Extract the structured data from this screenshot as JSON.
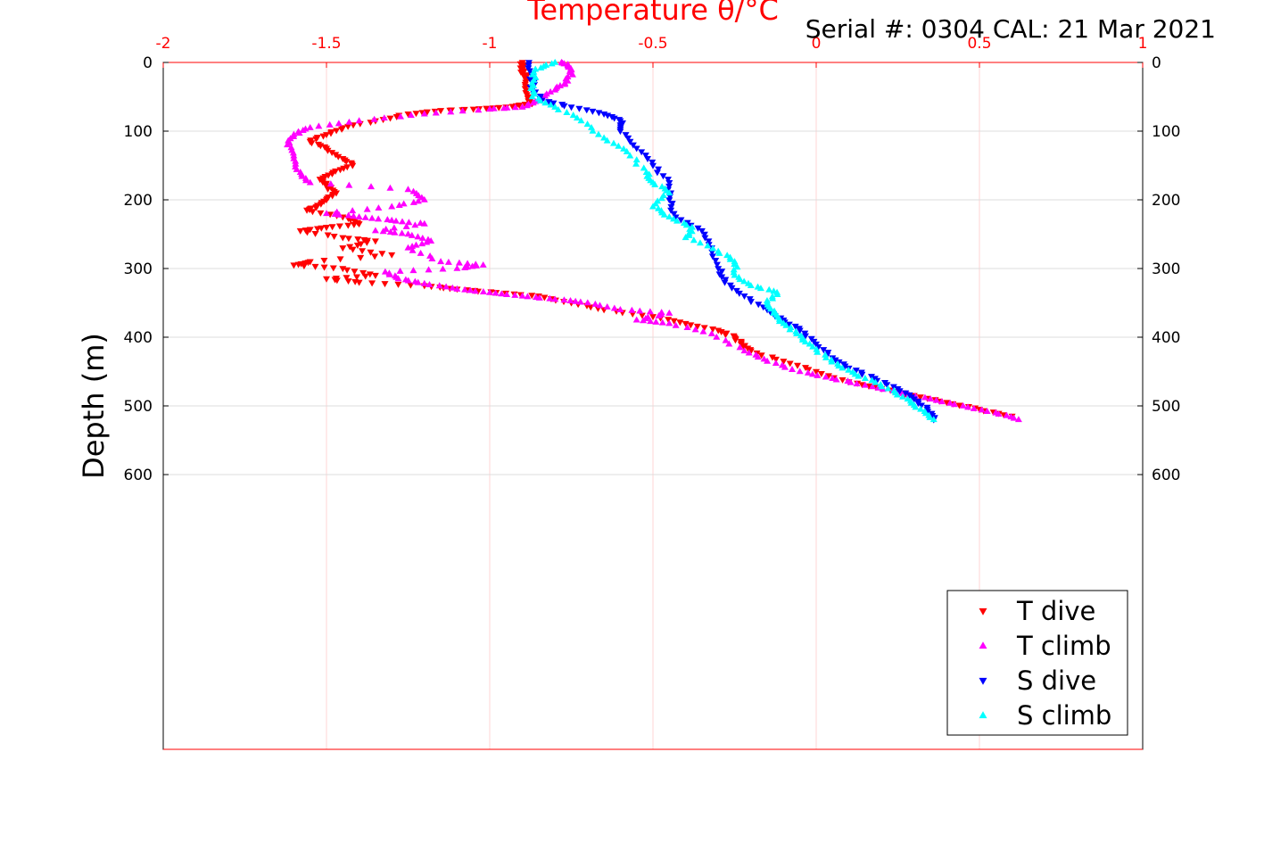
{
  "chart_data": {
    "type": "scatter",
    "title": "",
    "xlabel": "Temperature θ/°C",
    "ylabel": "Depth (m)",
    "annotation": "Serial #: 0304  CAL: 21 Mar 2021",
    "xlim": [
      -2,
      1
    ],
    "ylim": [
      0,
      1000
    ],
    "y_reversed": true,
    "x_axis_position": "top",
    "x_ticks": [
      -2,
      -1.5,
      -1,
      -0.5,
      0,
      0.5,
      1
    ],
    "x_tick_labels": [
      "-2",
      "-1.5",
      "-1",
      "-0.5",
      "0",
      "0.5",
      "1"
    ],
    "y_ticks": [
      0,
      100,
      200,
      300,
      400,
      500,
      600
    ],
    "y_tick_labels": [
      "0",
      "100",
      "200",
      "300",
      "400",
      "500",
      "600"
    ],
    "grid": true,
    "legend_position": "bottom-right",
    "series": [
      {
        "name": "T dive",
        "color": "#ff0000",
        "marker": "triangle-down",
        "points": [
          [
            -0.9,
            0
          ],
          [
            -0.9,
            10
          ],
          [
            -0.89,
            20
          ],
          [
            -0.89,
            35
          ],
          [
            -0.88,
            50
          ],
          [
            -0.87,
            60
          ],
          [
            -0.95,
            65
          ],
          [
            -1.05,
            68
          ],
          [
            -1.15,
            70
          ],
          [
            -1.25,
            75
          ],
          [
            -1.35,
            85
          ],
          [
            -1.45,
            95
          ],
          [
            -1.5,
            105
          ],
          [
            -1.55,
            115
          ],
          [
            -1.5,
            125
          ],
          [
            -1.45,
            140
          ],
          [
            -1.42,
            150
          ],
          [
            -1.48,
            160
          ],
          [
            -1.52,
            170
          ],
          [
            -1.5,
            180
          ],
          [
            -1.47,
            190
          ],
          [
            -1.5,
            200
          ],
          [
            -1.53,
            210
          ],
          [
            -1.56,
            215
          ],
          [
            -1.45,
            225
          ],
          [
            -1.4,
            235
          ],
          [
            -1.5,
            240
          ],
          [
            -1.58,
            245
          ],
          [
            -1.45,
            255
          ],
          [
            -1.35,
            260
          ],
          [
            -1.45,
            270
          ],
          [
            -1.3,
            280
          ],
          [
            -1.55,
            290
          ],
          [
            -1.6,
            295
          ],
          [
            -1.45,
            300
          ],
          [
            -1.35,
            310
          ],
          [
            -1.5,
            315
          ],
          [
            -1.4,
            320
          ],
          [
            -1.2,
            325
          ],
          [
            -1.1,
            330
          ],
          [
            -0.98,
            335
          ],
          [
            -0.85,
            340
          ],
          [
            -0.75,
            350
          ],
          [
            -0.65,
            360
          ],
          [
            -0.5,
            370
          ],
          [
            -0.4,
            380
          ],
          [
            -0.3,
            390
          ],
          [
            -0.25,
            400
          ],
          [
            -0.23,
            410
          ],
          [
            -0.2,
            420
          ],
          [
            -0.1,
            435
          ],
          [
            0.0,
            450
          ],
          [
            0.1,
            465
          ],
          [
            0.2,
            475
          ],
          [
            0.3,
            485
          ],
          [
            0.4,
            495
          ],
          [
            0.5,
            505
          ],
          [
            0.6,
            515
          ]
        ]
      },
      {
        "name": "T climb",
        "color": "#ff00ff",
        "marker": "triangle-up",
        "points": [
          [
            0.62,
            520
          ],
          [
            0.55,
            510
          ],
          [
            0.45,
            500
          ],
          [
            0.35,
            490
          ],
          [
            0.25,
            480
          ],
          [
            0.15,
            470
          ],
          [
            0.05,
            460
          ],
          [
            -0.05,
            450
          ],
          [
            -0.15,
            435
          ],
          [
            -0.22,
            420
          ],
          [
            -0.32,
            395
          ],
          [
            -0.45,
            380
          ],
          [
            -0.55,
            375
          ],
          [
            -0.45,
            365
          ],
          [
            -0.6,
            360
          ],
          [
            -0.7,
            350
          ],
          [
            -0.8,
            345
          ],
          [
            -0.9,
            340
          ],
          [
            -1.0,
            335
          ],
          [
            -1.1,
            330
          ],
          [
            -1.2,
            322
          ],
          [
            -1.28,
            315
          ],
          [
            -1.32,
            305
          ],
          [
            -1.1,
            300
          ],
          [
            -1.02,
            295
          ],
          [
            -1.15,
            290
          ],
          [
            -1.25,
            270
          ],
          [
            -1.18,
            260
          ],
          [
            -1.25,
            250
          ],
          [
            -1.35,
            245
          ],
          [
            -1.2,
            235
          ],
          [
            -1.3,
            230
          ],
          [
            -1.4,
            225
          ],
          [
            -1.5,
            220
          ],
          [
            -1.3,
            210
          ],
          [
            -1.2,
            200
          ],
          [
            -1.25,
            185
          ],
          [
            -1.55,
            175
          ],
          [
            -1.58,
            160
          ],
          [
            -1.6,
            140
          ],
          [
            -1.62,
            120
          ],
          [
            -1.6,
            105
          ],
          [
            -1.55,
            95
          ],
          [
            -1.4,
            85
          ],
          [
            -1.2,
            75
          ],
          [
            -1.0,
            68
          ],
          [
            -0.9,
            65
          ],
          [
            -0.85,
            55
          ],
          [
            -0.8,
            40
          ],
          [
            -0.77,
            30
          ],
          [
            -0.75,
            15
          ],
          [
            -0.76,
            5
          ],
          [
            -0.78,
            0
          ]
        ]
      },
      {
        "name": "S dive",
        "color": "#0000ff",
        "marker": "triangle-down",
        "points": [
          [
            -0.88,
            0
          ],
          [
            -0.87,
            20
          ],
          [
            -0.87,
            40
          ],
          [
            -0.84,
            55
          ],
          [
            -0.75,
            65
          ],
          [
            -0.65,
            75
          ],
          [
            -0.6,
            85
          ],
          [
            -0.6,
            100
          ],
          [
            -0.55,
            125
          ],
          [
            -0.5,
            150
          ],
          [
            -0.45,
            175
          ],
          [
            -0.45,
            200
          ],
          [
            -0.43,
            225
          ],
          [
            -0.35,
            245
          ],
          [
            -0.32,
            270
          ],
          [
            -0.3,
            300
          ],
          [
            -0.28,
            320
          ],
          [
            -0.22,
            340
          ],
          [
            -0.15,
            360
          ],
          [
            -0.1,
            375
          ],
          [
            -0.05,
            390
          ],
          [
            0.0,
            410
          ],
          [
            0.05,
            430
          ],
          [
            0.1,
            445
          ],
          [
            0.18,
            460
          ],
          [
            0.25,
            475
          ],
          [
            0.3,
            490
          ],
          [
            0.34,
            505
          ],
          [
            0.36,
            520
          ]
        ]
      },
      {
        "name": "S climb",
        "color": "#00ffff",
        "marker": "triangle-up",
        "points": [
          [
            0.36,
            520
          ],
          [
            0.32,
            505
          ],
          [
            0.28,
            490
          ],
          [
            0.22,
            475
          ],
          [
            0.15,
            460
          ],
          [
            0.08,
            445
          ],
          [
            0.03,
            430
          ],
          [
            -0.02,
            410
          ],
          [
            -0.06,
            395
          ],
          [
            -0.1,
            380
          ],
          [
            -0.13,
            365
          ],
          [
            -0.15,
            350
          ],
          [
            -0.12,
            335
          ],
          [
            -0.2,
            325
          ],
          [
            -0.25,
            310
          ],
          [
            -0.25,
            290
          ],
          [
            -0.3,
            275
          ],
          [
            -0.4,
            255
          ],
          [
            -0.38,
            240
          ],
          [
            -0.45,
            225
          ],
          [
            -0.5,
            210
          ],
          [
            -0.45,
            190
          ],
          [
            -0.5,
            175
          ],
          [
            -0.52,
            160
          ],
          [
            -0.58,
            130
          ],
          [
            -0.65,
            110
          ],
          [
            -0.72,
            85
          ],
          [
            -0.8,
            65
          ],
          [
            -0.87,
            50
          ],
          [
            -0.87,
            30
          ],
          [
            -0.86,
            10
          ],
          [
            -0.8,
            0
          ]
        ]
      }
    ]
  }
}
